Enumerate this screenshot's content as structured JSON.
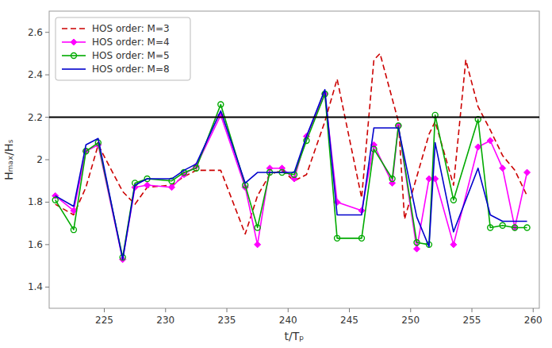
{
  "chart_data": {
    "type": "line",
    "xlabel": "t/Tₚ",
    "ylabel": "Hₘₐₓ/Hₛ",
    "xlim": [
      220.5,
      260.5
    ],
    "ylim": [
      1.3,
      2.7
    ],
    "xticks": [
      225,
      230,
      235,
      240,
      245,
      250,
      255,
      260
    ],
    "yticks": [
      1.4,
      1.6,
      1.8,
      2,
      2.2,
      2.4,
      2.6
    ],
    "hline": 2.2,
    "grid": false,
    "legend": "upper-left",
    "series": [
      {
        "name": "HOS order: M=3",
        "color": "#cc0000",
        "line_style": "dashed",
        "marker": "none",
        "x": [
          221.0,
          222.5,
          223.5,
          224.5,
          226.5,
          227.5,
          228.5,
          230.5,
          231.5,
          232.5,
          234.5,
          236.5,
          237.5,
          238.5,
          239.5,
          240.5,
          241.5,
          243.0,
          244.0,
          246.0,
          247.0,
          247.5,
          249.0,
          249.5,
          251.5,
          252.0,
          253.5,
          254.5,
          255.5,
          256.5,
          257.5,
          258.5,
          259.5
        ],
        "values": [
          1.79,
          1.74,
          1.87,
          2.07,
          1.85,
          1.79,
          1.87,
          1.88,
          1.92,
          1.95,
          1.95,
          1.65,
          1.83,
          1.93,
          1.95,
          1.9,
          1.93,
          2.18,
          2.38,
          1.82,
          2.47,
          2.5,
          2.18,
          1.72,
          2.12,
          2.18,
          1.88,
          2.47,
          2.25,
          2.14,
          2.02,
          1.95,
          1.83
        ]
      },
      {
        "name": "HOS order: M=4",
        "color": "#ff00ff",
        "line_style": "solid",
        "marker": "diamond",
        "x": [
          221.0,
          222.5,
          223.5,
          224.5,
          226.5,
          227.5,
          228.5,
          230.5,
          231.5,
          232.5,
          234.5,
          236.5,
          237.5,
          238.5,
          239.5,
          240.5,
          241.5,
          243.0,
          244.0,
          246.0,
          247.0,
          248.5,
          249.0,
          250.5,
          251.5,
          252.0,
          253.5,
          255.5,
          256.5,
          257.5,
          258.5,
          259.5
        ],
        "values": [
          1.83,
          1.76,
          2.04,
          2.07,
          1.53,
          1.87,
          1.88,
          1.87,
          1.93,
          1.97,
          2.21,
          1.87,
          1.6,
          1.96,
          1.96,
          1.91,
          2.11,
          2.31,
          1.8,
          1.76,
          2.07,
          1.89,
          2.16,
          1.58,
          1.91,
          1.91,
          1.6,
          2.06,
          2.09,
          1.96,
          1.68,
          1.94
        ]
      },
      {
        "name": "HOS order: M=5",
        "color": "#00aa00",
        "line_style": "solid",
        "marker": "open-circle",
        "x": [
          221.0,
          222.5,
          223.5,
          224.5,
          226.5,
          227.5,
          228.5,
          230.5,
          231.5,
          232.5,
          234.5,
          236.5,
          237.5,
          238.5,
          239.5,
          240.5,
          241.5,
          243.0,
          244.0,
          246.0,
          247.0,
          248.5,
          249.0,
          250.5,
          251.5,
          252.0,
          253.5,
          255.5,
          256.5,
          257.5,
          258.5,
          259.5
        ],
        "values": [
          1.81,
          1.67,
          2.04,
          2.08,
          1.54,
          1.89,
          1.91,
          1.9,
          1.94,
          1.96,
          2.26,
          1.88,
          1.68,
          1.94,
          1.94,
          1.93,
          2.09,
          2.31,
          1.63,
          1.63,
          2.05,
          1.91,
          2.16,
          1.61,
          1.6,
          2.21,
          1.81,
          2.19,
          1.68,
          1.69,
          1.68,
          1.68
        ]
      },
      {
        "name": "HOS order: M=8",
        "color": "#0000cc",
        "line_style": "solid",
        "marker": "none",
        "x": [
          221.0,
          222.5,
          223.5,
          224.5,
          226.5,
          227.5,
          228.5,
          230.5,
          231.5,
          232.5,
          234.5,
          236.5,
          237.5,
          238.5,
          239.5,
          240.5,
          241.5,
          243.0,
          244.0,
          246.0,
          247.0,
          248.5,
          249.0,
          250.5,
          251.5,
          252.0,
          253.5,
          255.5,
          256.5,
          257.5,
          258.5,
          259.5
        ],
        "values": [
          1.83,
          1.78,
          2.07,
          2.1,
          1.53,
          1.88,
          1.91,
          1.91,
          1.95,
          1.98,
          2.23,
          1.89,
          1.94,
          1.94,
          1.94,
          1.94,
          2.11,
          2.33,
          1.74,
          1.74,
          2.15,
          2.15,
          2.15,
          1.73,
          1.59,
          2.08,
          1.66,
          1.96,
          1.74,
          1.71,
          1.71,
          1.71
        ]
      }
    ]
  }
}
